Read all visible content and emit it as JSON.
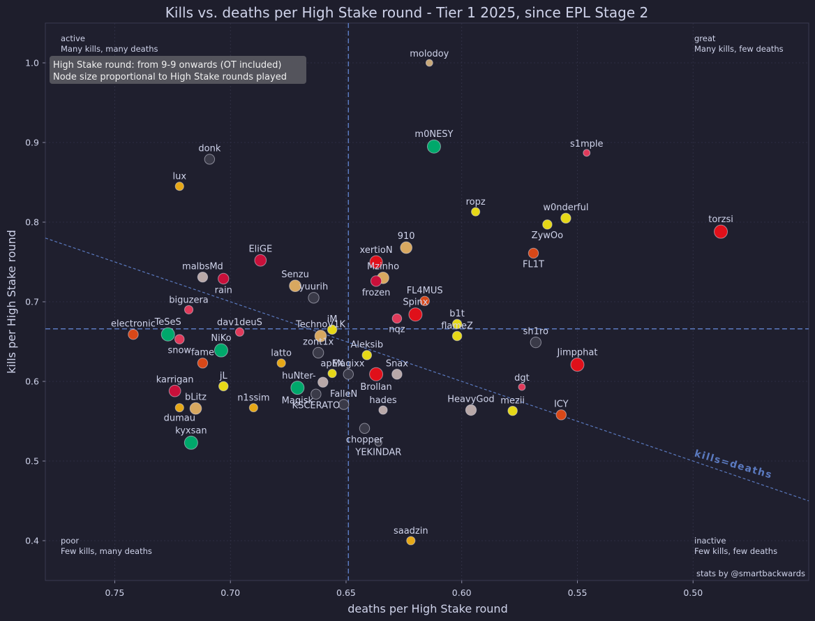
{
  "chart_data": {
    "type": "scatter",
    "title": "Kills vs. deaths per High Stake round - Tier 1 2025, since EPL Stage 2",
    "xlabel": "deaths per High Stake round",
    "ylabel": "kills per High Stake round",
    "xlim": [
      0.78,
      0.45
    ],
    "ylim": [
      0.35,
      1.05
    ],
    "x_inverted": true,
    "grid": true,
    "xticks": [
      0.75,
      0.7,
      0.65,
      0.6,
      0.55,
      0.5
    ],
    "xtick_labels": [
      "0.75",
      "0.70",
      "0.65",
      "0.60",
      "0.55",
      "0.50"
    ],
    "yticks": [
      0.4,
      0.5,
      0.6,
      0.7,
      0.8,
      0.9,
      1.0
    ],
    "ytick_labels": [
      "0.4",
      "0.5",
      "0.6",
      "0.7",
      "0.8",
      "0.9",
      "1.0"
    ],
    "reference_lines": {
      "x": 0.649,
      "y": 0.666,
      "diagonal_label": "kills=deaths"
    },
    "info_box": [
      "High Stake round: from 9-9 onwards (OT included)",
      "Node size proportional to High Stake rounds played"
    ],
    "quadrants": [
      {
        "name": "active",
        "desc": "Many kills, many deaths",
        "pos": "top-left"
      },
      {
        "name": "great",
        "desc": "Many kills, few deaths",
        "pos": "top-right"
      },
      {
        "name": "poor",
        "desc": "Few kills, many deaths",
        "pos": "bottom-left"
      },
      {
        "name": "inactive",
        "desc": "Few kills, few deaths",
        "pos": "bottom-right"
      }
    ],
    "credit": "stats by @smartbackwards",
    "points": [
      {
        "label": "molodoy",
        "x": 0.614,
        "y": 1.0,
        "size": 1,
        "color": "#c8a878",
        "lp": "above"
      },
      {
        "label": "m0NESY",
        "x": 0.612,
        "y": 0.895,
        "size": 3,
        "color": "#00a86b",
        "lp": "above"
      },
      {
        "label": "s1mple",
        "x": 0.546,
        "y": 0.887,
        "size": 1,
        "color": "#e03a5a",
        "lp": "above"
      },
      {
        "label": "donk",
        "x": 0.709,
        "y": 0.879,
        "size": 2,
        "color": "#3a3a48",
        "lp": "above"
      },
      {
        "label": "lux",
        "x": 0.722,
        "y": 0.845,
        "size": 1.5,
        "color": "#e6a817",
        "lp": "above"
      },
      {
        "label": "ropz",
        "x": 0.594,
        "y": 0.813,
        "size": 1.5,
        "color": "#e6d817",
        "lp": "above"
      },
      {
        "label": "w0nderful",
        "x": 0.555,
        "y": 0.805,
        "size": 2,
        "color": "#e6d817",
        "lp": "above"
      },
      {
        "label": "ZywOo",
        "x": 0.563,
        "y": 0.797,
        "size": 1.8,
        "color": "#e6d817",
        "lp": "below"
      },
      {
        "label": "torzsi",
        "x": 0.488,
        "y": 0.788,
        "size": 3,
        "color": "#e0101a",
        "lp": "above"
      },
      {
        "label": "910",
        "x": 0.624,
        "y": 0.768,
        "size": 2.5,
        "color": "#d8a860",
        "lp": "above"
      },
      {
        "label": "FL1T",
        "x": 0.569,
        "y": 0.761,
        "size": 2,
        "color": "#d84818",
        "lp": "below"
      },
      {
        "label": "EliGE",
        "x": 0.687,
        "y": 0.752,
        "size": 2.5,
        "color": "#c8103a",
        "lp": "above"
      },
      {
        "label": "xertioN",
        "x": 0.637,
        "y": 0.75,
        "size": 2.8,
        "color": "#e0101a",
        "lp": "above"
      },
      {
        "label": "malbsMd",
        "x": 0.712,
        "y": 0.731,
        "size": 2,
        "color": "#b8a8a8",
        "lp": "above"
      },
      {
        "label": "Mzinho",
        "x": 0.634,
        "y": 0.73,
        "size": 2.5,
        "color": "#d8a860",
        "lp": "above"
      },
      {
        "label": "rain",
        "x": 0.703,
        "y": 0.729,
        "size": 2.2,
        "color": "#c8103a",
        "lp": "below"
      },
      {
        "label": "frozen",
        "x": 0.637,
        "y": 0.726,
        "size": 2.2,
        "color": "#c8103a",
        "lp": "below"
      },
      {
        "label": "Senzu",
        "x": 0.672,
        "y": 0.72,
        "size": 2.5,
        "color": "#d8a860",
        "lp": "above"
      },
      {
        "label": "yuurih",
        "x": 0.664,
        "y": 0.705,
        "size": 2.2,
        "color": "#3a3a48",
        "lp": "above"
      },
      {
        "label": "FL4MUS",
        "x": 0.616,
        "y": 0.701,
        "size": 1.8,
        "color": "#d84818",
        "lp": "above"
      },
      {
        "label": "biguzera",
        "x": 0.718,
        "y": 0.69,
        "size": 1.5,
        "color": "#e03a5a",
        "lp": "above"
      },
      {
        "label": "Spinx",
        "x": 0.62,
        "y": 0.684,
        "size": 3,
        "color": "#e0101a",
        "lp": "above"
      },
      {
        "label": "nqz",
        "x": 0.628,
        "y": 0.679,
        "size": 1.8,
        "color": "#e03a5a",
        "lp": "below"
      },
      {
        "label": "b1t",
        "x": 0.602,
        "y": 0.672,
        "size": 1.8,
        "color": "#e6d817",
        "lp": "above"
      },
      {
        "label": "iM",
        "x": 0.656,
        "y": 0.665,
        "size": 1.8,
        "color": "#e6d817",
        "lp": "above"
      },
      {
        "label": "dav1deuS",
        "x": 0.696,
        "y": 0.662,
        "size": 1.5,
        "color": "#e03a5a",
        "lp": "above"
      },
      {
        "label": "electronic",
        "x": 0.742,
        "y": 0.659,
        "size": 2,
        "color": "#d84818",
        "lp": "above"
      },
      {
        "label": "TeSeS",
        "x": 0.727,
        "y": 0.659,
        "size": 3,
        "color": "#00a86b",
        "lp": "above"
      },
      {
        "label": "TechnoV1K",
        "x": 0.661,
        "y": 0.657,
        "size": 2.5,
        "color": "#d8a860",
        "lp": "above"
      },
      {
        "label": "flameZ",
        "x": 0.602,
        "y": 0.657,
        "size": 1.8,
        "color": "#e6d817",
        "lp": "above"
      },
      {
        "label": "snow",
        "x": 0.722,
        "y": 0.653,
        "size": 1.8,
        "color": "#e03a5a",
        "lp": "below"
      },
      {
        "label": "sh1ro",
        "x": 0.568,
        "y": 0.649,
        "size": 2.2,
        "color": "#3a3a48",
        "lp": "above"
      },
      {
        "label": "NiKo",
        "x": 0.704,
        "y": 0.639,
        "size": 3,
        "color": "#00a86b",
        "lp": "above"
      },
      {
        "label": "zont1x",
        "x": 0.662,
        "y": 0.636,
        "size": 2.2,
        "color": "#3a3a48",
        "lp": "above"
      },
      {
        "label": "Aleksib",
        "x": 0.641,
        "y": 0.633,
        "size": 1.8,
        "color": "#e6d817",
        "lp": "above"
      },
      {
        "label": "latto",
        "x": 0.678,
        "y": 0.623,
        "size": 1.5,
        "color": "#e6a817",
        "lp": "above"
      },
      {
        "label": "fame",
        "x": 0.712,
        "y": 0.623,
        "size": 2,
        "color": "#d84818",
        "lp": "above"
      },
      {
        "label": "Jimpphat",
        "x": 0.55,
        "y": 0.621,
        "size": 3,
        "color": "#e0101a",
        "lp": "above"
      },
      {
        "label": "apEX",
        "x": 0.656,
        "y": 0.61,
        "size": 1.5,
        "color": "#e6d817",
        "lp": "above"
      },
      {
        "label": "Magixx",
        "x": 0.649,
        "y": 0.609,
        "size": 2,
        "color": "#3a3a48",
        "lp": "above"
      },
      {
        "label": "Brollan",
        "x": 0.637,
        "y": 0.609,
        "size": 3,
        "color": "#e0101a",
        "lp": "below"
      },
      {
        "label": "Snax",
        "x": 0.628,
        "y": 0.609,
        "size": 2,
        "color": "#b8a8a8",
        "lp": "above"
      },
      {
        "label": "huNter-",
        "x": 0.66,
        "y": 0.599,
        "size": 2,
        "color": "#b8a8a8",
        "lp": "left"
      },
      {
        "label": "jL",
        "x": 0.703,
        "y": 0.594,
        "size": 1.8,
        "color": "#e6d817",
        "lp": "above"
      },
      {
        "label": "dgt",
        "x": 0.574,
        "y": 0.593,
        "size": 1,
        "color": "#e03a5a",
        "lp": "above"
      },
      {
        "label": "Magisk",
        "x": 0.671,
        "y": 0.592,
        "size": 3,
        "color": "#00a86b",
        "lp": "below"
      },
      {
        "label": "karrigan",
        "x": 0.724,
        "y": 0.588,
        "size": 2.5,
        "color": "#c8103a",
        "lp": "above"
      },
      {
        "label": "KSCERATO",
        "x": 0.663,
        "y": 0.584,
        "size": 2,
        "color": "#3a3a48",
        "lp": "below"
      },
      {
        "label": "FalleN",
        "x": 0.651,
        "y": 0.571,
        "size": 2,
        "color": "#3a3a48",
        "lp": "above"
      },
      {
        "label": "n1ssim",
        "x": 0.69,
        "y": 0.567,
        "size": 1.5,
        "color": "#e6a817",
        "lp": "above"
      },
      {
        "label": "dumau",
        "x": 0.722,
        "y": 0.567,
        "size": 1.5,
        "color": "#e6a817",
        "lp": "below"
      },
      {
        "label": "bLitz",
        "x": 0.715,
        "y": 0.566,
        "size": 2.5,
        "color": "#d8a860",
        "lp": "above"
      },
      {
        "label": "HeavyGod",
        "x": 0.596,
        "y": 0.564,
        "size": 2.2,
        "color": "#b8a8a8",
        "lp": "above"
      },
      {
        "label": "hades",
        "x": 0.634,
        "y": 0.564,
        "size": 1.5,
        "color": "#b8a8a8",
        "lp": "above"
      },
      {
        "label": "mezii",
        "x": 0.578,
        "y": 0.563,
        "size": 1.8,
        "color": "#e6d817",
        "lp": "above"
      },
      {
        "label": "ICY",
        "x": 0.557,
        "y": 0.558,
        "size": 2,
        "color": "#d84818",
        "lp": "above"
      },
      {
        "label": "chopper",
        "x": 0.642,
        "y": 0.541,
        "size": 2,
        "color": "#3a3a48",
        "lp": "below"
      },
      {
        "label": "YEKINDAR",
        "x": 0.636,
        "y": 0.523,
        "size": 1,
        "color": "#3a3a48",
        "lp": "below"
      },
      {
        "label": "kyxsan",
        "x": 0.717,
        "y": 0.523,
        "size": 3,
        "color": "#00a86b",
        "lp": "above"
      },
      {
        "label": "saadzin",
        "x": 0.622,
        "y": 0.4,
        "size": 1.5,
        "color": "#e6a817",
        "lp": "above"
      }
    ]
  }
}
